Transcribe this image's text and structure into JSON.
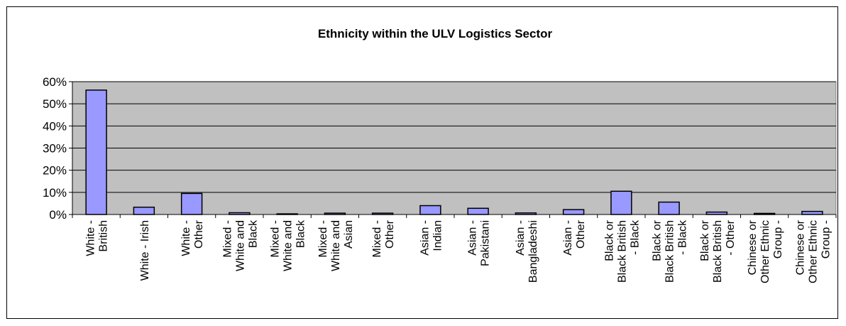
{
  "chart_data": {
    "type": "bar",
    "title": "Ethnicity within the ULV Logistics Sector",
    "xlabel": "",
    "ylabel": "",
    "ylim": [
      0,
      60
    ],
    "ytick_labels": [
      "0%",
      "10%",
      "20%",
      "30%",
      "40%",
      "50%",
      "60%"
    ],
    "grid": true,
    "legend": "none",
    "colors": {
      "bar_fill": "#9999ff",
      "plot_bg": "#c0c0c0",
      "bar_stroke": "#000000"
    },
    "categories": [
      [
        "White -",
        "British"
      ],
      [
        "White - Irish"
      ],
      [
        "White -",
        "Other"
      ],
      [
        "Mixed -",
        "White and",
        "Black"
      ],
      [
        "Mixed -",
        "White and",
        "Black"
      ],
      [
        "Mixed -",
        "White and",
        "Asian"
      ],
      [
        "Mixed -",
        "Other"
      ],
      [
        "Asian -",
        "Indian"
      ],
      [
        "Asian -",
        "Pakistani"
      ],
      [
        "Asian -",
        "Bangladeshi"
      ],
      [
        "Asian -",
        "Other"
      ],
      [
        "Black or",
        "Black British",
        "- Black"
      ],
      [
        "Black or",
        "Black British",
        "- Black"
      ],
      [
        "Black or",
        "Black British",
        "- Other"
      ],
      [
        "Chinese or",
        "Other Ethnic",
        "Group -"
      ],
      [
        "Chinese or",
        "Other Ethnic",
        "Group -"
      ]
    ],
    "values": [
      56.2,
      3.3,
      9.5,
      0.8,
      0.3,
      0.6,
      0.6,
      4.0,
      2.8,
      0.7,
      2.2,
      10.5,
      5.6,
      1.1,
      0.5,
      1.4
    ]
  }
}
